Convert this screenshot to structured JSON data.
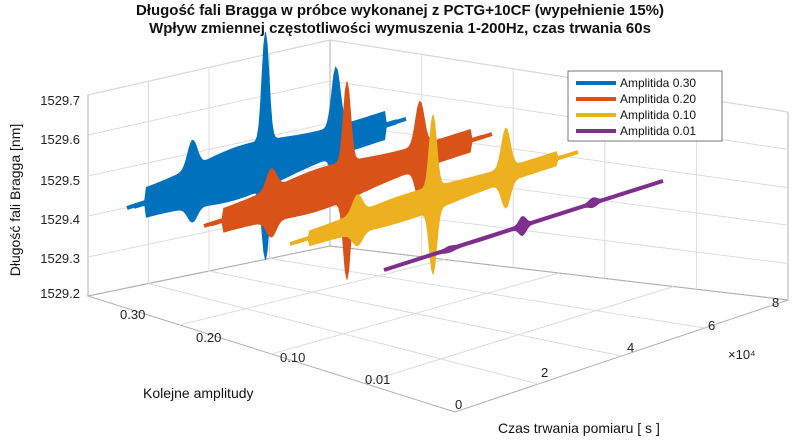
{
  "chart_data": {
    "type": "line",
    "title": "Długość fali Bragga w próbce wykonanej z PCTG+10CF (wypełnienie 15%)",
    "subtitle": "Wpływ zmiennej częstotliwości wymuszenia 1-200Hz, czas trwania 60s",
    "zlabel": "Długość fali Bragga [nm]",
    "ylabel": "Kolejne amplitudy",
    "xlabel": "Czas trwania pomiaru [ s ]",
    "x_exponent_label": "×10⁴",
    "x_ticks": [
      "0",
      "2",
      "4",
      "6",
      "8"
    ],
    "y_ticks": [
      "0.01",
      "0.10",
      "0.20",
      "0.30"
    ],
    "z_ticks": [
      "1529.2",
      "1529.3",
      "1529.4",
      "1529.5",
      "1529.6",
      "1529.7"
    ],
    "xlim": [
      0,
      8
    ],
    "zlim": [
      1529.2,
      1529.7
    ],
    "grid": true,
    "legend_position": "top-right",
    "series": [
      {
        "name": "Amplitida 0.30",
        "color": "#0072BD",
        "amplitude": 0.3,
        "x_range": [
          0,
          6
        ],
        "baseline": 1529.4,
        "band": 0.05,
        "peak": 0.27,
        "dip": -0.18
      },
      {
        "name": "Amplitida 0.20",
        "color": "#D95319",
        "amplitude": 0.2,
        "x_range": [
          0,
          6
        ],
        "baseline": 1529.42,
        "band": 0.04,
        "peak": 0.2,
        "dip": -0.2
      },
      {
        "name": "Amplitida 0.10",
        "color": "#EDB120",
        "amplitude": 0.1,
        "x_range": [
          0,
          6
        ],
        "baseline": 1529.43,
        "band": 0.025,
        "peak": 0.18,
        "dip": -0.16
      },
      {
        "name": "Amplitida 0.01",
        "color": "#7E2F8E",
        "amplitude": 0.01,
        "x_range": [
          0,
          6
        ],
        "baseline": 1529.4,
        "band": 0.003,
        "peak": 0.02,
        "dip": -0.02
      }
    ]
  }
}
